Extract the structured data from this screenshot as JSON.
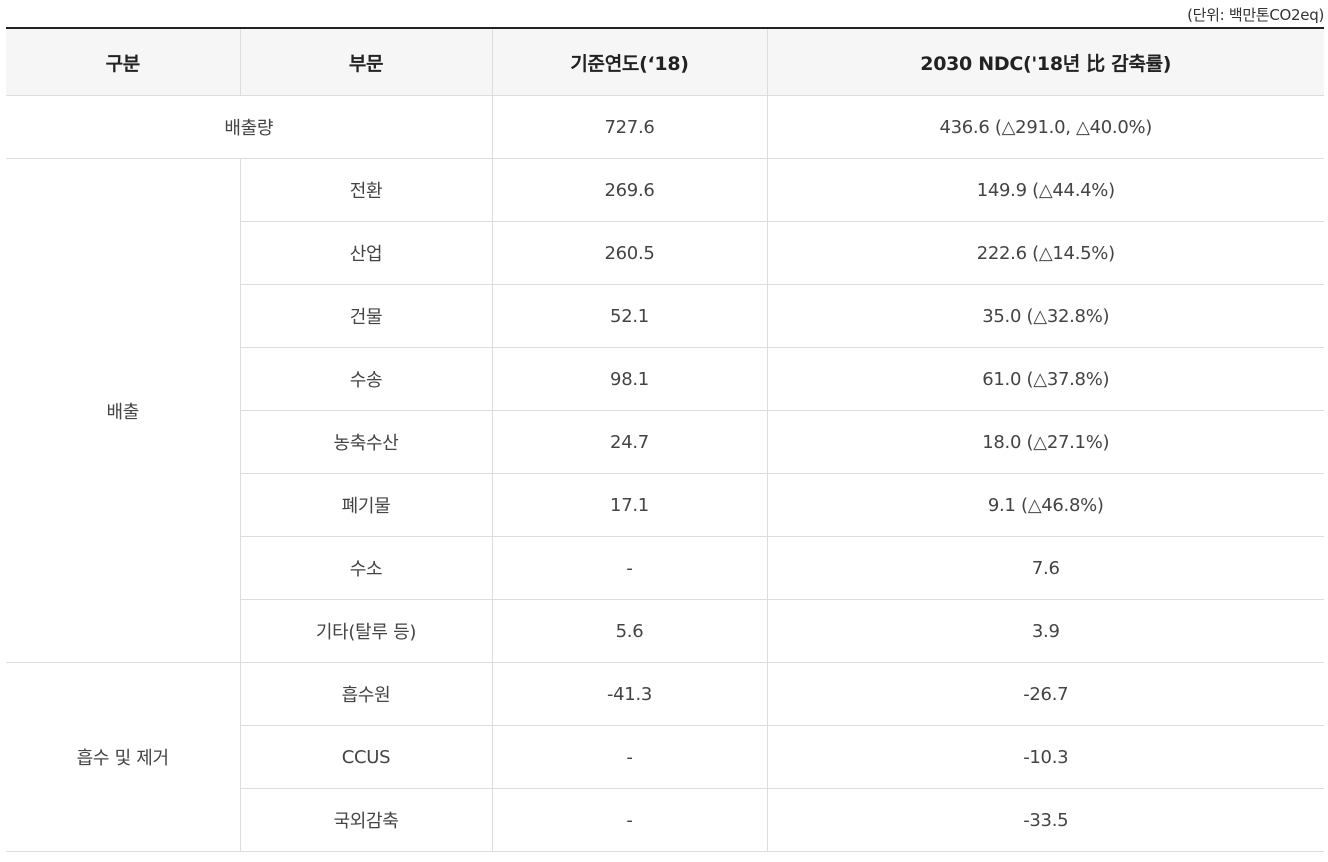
{
  "unit_note": "(단위: 백만톤CO2eq)",
  "headers": {
    "category": "구분",
    "sector": "부문",
    "base_year": "기준연도(‘18)",
    "ndc": "2030 NDC('18년 比 감축률)"
  },
  "total_row": {
    "label": "배출량",
    "base": "727.6",
    "ndc": "436.6 (△291.0, △40.0%)"
  },
  "emission_group": {
    "label": "배출",
    "rows": [
      {
        "sector": "전환",
        "base": "269.6",
        "ndc": "149.9 (△44.4%)"
      },
      {
        "sector": "산업",
        "base": "260.5",
        "ndc": "222.6 (△14.5%)"
      },
      {
        "sector": "건물",
        "base": "52.1",
        "ndc": "35.0 (△32.8%)"
      },
      {
        "sector": "수송",
        "base": "98.1",
        "ndc": "61.0 (△37.8%)"
      },
      {
        "sector": "농축수산",
        "base": "24.7",
        "ndc": "18.0 (△27.1%)"
      },
      {
        "sector": "폐기물",
        "base": "17.1",
        "ndc": "9.1 (△46.8%)"
      },
      {
        "sector": "수소",
        "base": "-",
        "ndc": "7.6"
      },
      {
        "sector": "기타(탈루 등)",
        "base": "5.6",
        "ndc": "3.9"
      }
    ]
  },
  "absorption_group": {
    "label": "흡수 및 제거",
    "rows": [
      {
        "sector": "흡수원",
        "base": "-41.3",
        "ndc": "-26.7"
      },
      {
        "sector": "CCUS",
        "base": "-",
        "ndc": "-10.3"
      },
      {
        "sector": "국외감축",
        "base": "-",
        "ndc": "-33.5"
      }
    ]
  }
}
